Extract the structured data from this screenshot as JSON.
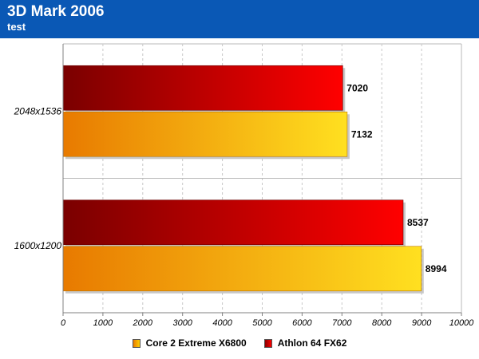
{
  "chart_data": {
    "type": "bar",
    "orientation": "horizontal",
    "title": "3D Mark 2006",
    "subtitle": "test",
    "categories": [
      "2048x1536",
      "1600x1200"
    ],
    "series": [
      {
        "name": "Athlon 64 FX62",
        "values": [
          7020,
          8537
        ],
        "color": "#cc0000"
      },
      {
        "name": "Core 2 Extreme X6800",
        "values": [
          7132,
          8994
        ],
        "color": "#f5a000"
      }
    ],
    "xlim": [
      0,
      10000
    ],
    "xticks": [
      "0",
      "1000",
      "2000",
      "3000",
      "4000",
      "5000",
      "6000",
      "7000",
      "8000",
      "9000",
      "10000"
    ],
    "xlabel": "",
    "ylabel": "",
    "grid": "vertical dashed",
    "legend_position": "bottom",
    "legend": [
      "Core 2 Extreme X6800",
      "Athlon 64 FX62"
    ]
  },
  "colors": {
    "header_bg": "#0a58b5",
    "red_dark": "#7a0000",
    "red_light": "#ff0000",
    "orange_dark": "#e87a00",
    "orange_light": "#ffe020"
  }
}
